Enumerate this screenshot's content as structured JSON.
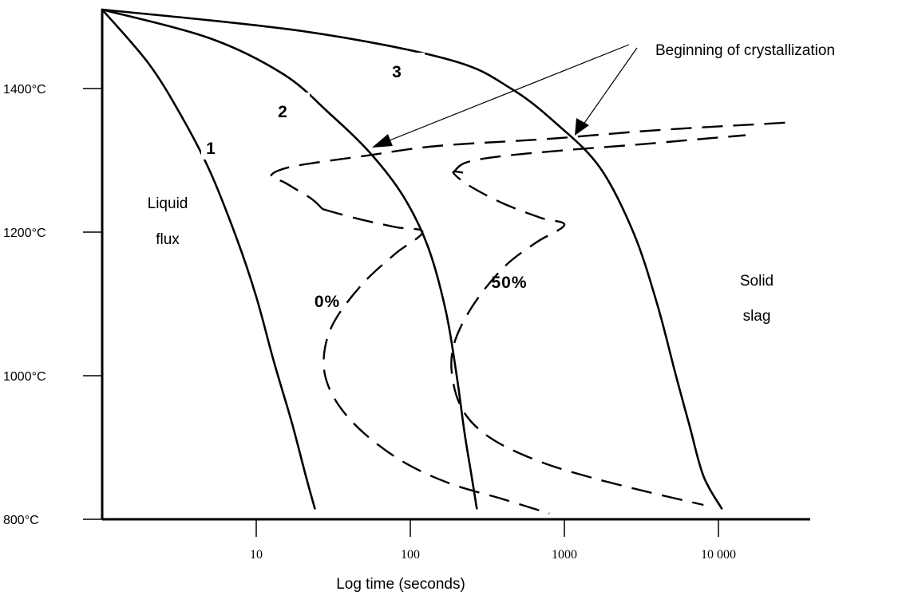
{
  "chart_data": {
    "type": "line",
    "title": "",
    "xlabel": "Log time (seconds)",
    "ylabel": "",
    "x_scale": "log",
    "x_tick_values": [
      10,
      100,
      1000,
      10000
    ],
    "x_tick_labels": [
      "10",
      "100",
      "1000",
      "10 000"
    ],
    "y_tick_values": [
      800,
      1000,
      1200,
      1400
    ],
    "y_tick_labels": [
      "800°C",
      "1000°C",
      "1200°C",
      "1400°C"
    ],
    "xlim": [
      1,
      40000
    ],
    "ylim": [
      800,
      1510
    ],
    "grid": false,
    "legend": "none",
    "series": [
      {
        "name": "1",
        "style": "solid",
        "points": [
          [
            1,
            1510
          ],
          [
            2,
            1435
          ],
          [
            3.3,
            1360
          ],
          [
            5,
            1285
          ],
          [
            7.5,
            1190
          ],
          [
            10,
            1110
          ],
          [
            13,
            1020
          ],
          [
            17,
            935
          ],
          [
            21,
            860
          ],
          [
            24,
            815
          ]
        ]
      },
      {
        "name": "2",
        "style": "solid",
        "points": [
          [
            1,
            1510
          ],
          [
            5,
            1470
          ],
          [
            15,
            1420
          ],
          [
            30,
            1365
          ],
          [
            55,
            1310
          ],
          [
            90,
            1250
          ],
          [
            130,
            1180
          ],
          [
            170,
            1090
          ],
          [
            200,
            1000
          ],
          [
            225,
            920
          ],
          [
            250,
            860
          ],
          [
            270,
            815
          ]
        ]
      },
      {
        "name": "3",
        "style": "solid",
        "points": [
          [
            1,
            1510
          ],
          [
            20,
            1480
          ],
          [
            180,
            1440
          ],
          [
            450,
            1400
          ],
          [
            900,
            1350
          ],
          [
            1700,
            1290
          ],
          [
            2800,
            1200
          ],
          [
            4000,
            1100
          ],
          [
            5300,
            1000
          ],
          [
            6500,
            930
          ],
          [
            8000,
            860
          ],
          [
            10500,
            815
          ]
        ]
      },
      {
        "name": "0%",
        "style": "dashed",
        "points": [
          [
            27,
            1232
          ],
          [
            23,
            1246
          ],
          [
            18,
            1260
          ],
          [
            15,
            1270
          ],
          [
            12.5,
            1277
          ],
          [
            14,
            1286
          ],
          [
            20,
            1294
          ],
          [
            50,
            1306
          ],
          [
            150,
            1320
          ],
          [
            800,
            1330
          ],
          [
            4000,
            1342
          ],
          [
            30000,
            1353
          ]
        ]
      },
      {
        "name": "0%",
        "style": "dashed",
        "points": [
          [
            27,
            1232
          ],
          [
            45,
            1219
          ],
          [
            80,
            1207
          ],
          [
            120,
            1200
          ],
          [
            80,
            1170
          ],
          [
            50,
            1130
          ],
          [
            33,
            1080
          ],
          [
            28,
            1040
          ],
          [
            28,
            1000
          ],
          [
            34,
            960
          ],
          [
            50,
            920
          ],
          [
            90,
            880
          ],
          [
            180,
            850
          ],
          [
            400,
            828
          ],
          [
            800,
            808
          ]
        ]
      },
      {
        "name": "50%",
        "style": "dashed",
        "points": [
          [
            220,
            1283
          ],
          [
            190,
            1283
          ],
          [
            240,
            1265
          ],
          [
            400,
            1240
          ],
          [
            700,
            1220
          ],
          [
            1000,
            1210
          ],
          [
            650,
            1185
          ],
          [
            400,
            1150
          ],
          [
            250,
            1095
          ],
          [
            190,
            1040
          ],
          [
            190,
            990
          ],
          [
            230,
            945
          ],
          [
            350,
            910
          ],
          [
            700,
            880
          ],
          [
            1500,
            858
          ],
          [
            3500,
            838
          ],
          [
            8000,
            820
          ]
        ]
      },
      {
        "name": "50%",
        "style": "dashed",
        "points": [
          [
            190,
            1283
          ],
          [
            230,
            1297
          ],
          [
            400,
            1306
          ],
          [
            1000,
            1314
          ],
          [
            3000,
            1322
          ],
          [
            8000,
            1330
          ],
          [
            15000,
            1335
          ]
        ]
      }
    ],
    "annotations": [
      {
        "text": "Beginning of crystallization",
        "points_to": [
          [
            50,
            1310
          ],
          [
            1200,
            1330
          ]
        ]
      },
      {
        "text": "Liquid flux",
        "region": "left of curve 1"
      },
      {
        "text": "Solid slag",
        "region": "right of curve 3"
      }
    ]
  },
  "labels": {
    "curve1": "1",
    "curve2": "2",
    "curve3": "3",
    "pct0": "0%",
    "pct50": "50%",
    "liquid_line1": "Liquid",
    "liquid_line2": "flux",
    "solid_line1": "Solid",
    "solid_line2": "slag",
    "annotation": "Beginning of crystallization"
  }
}
